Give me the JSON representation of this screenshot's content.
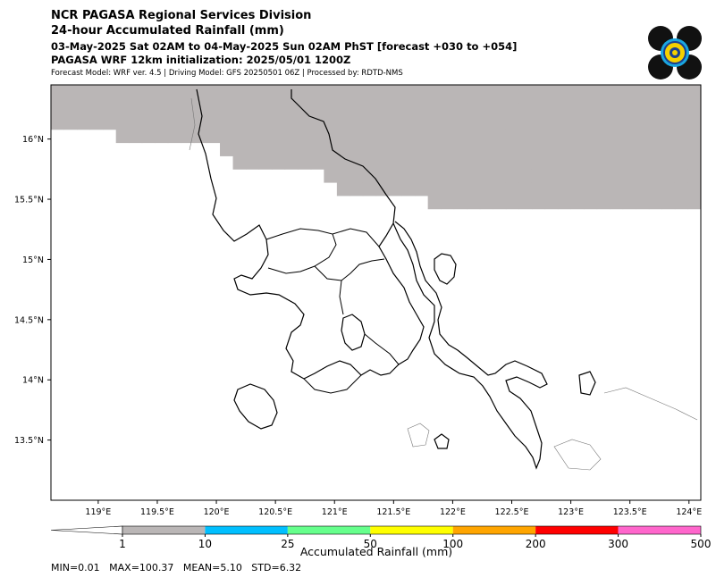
{
  "header": {
    "title": "NCR PAGASA Regional Services Division",
    "subtitle": "24-hour Accumulated Rainfall (mm)",
    "period": "03-May-2025 Sat 02AM to 04-May-2025 Sun 02AM PhST [forecast +030 to +054]",
    "init": "PAGASA WRF 12km initialization: 2025/05/01 1200Z",
    "meta": "Forecast Model: WRF ver. 4.5 | Driving Model: GFS 20250501 06Z | Processed by: RDTD-NMS"
  },
  "logo": {
    "name": "pagasa-logo"
  },
  "stats": "MIN=0.01   MAX=100.37   MEAN=5.10   STD=6.32",
  "chart_data": {
    "type": "heatmap",
    "title": "24-hour Accumulated Rainfall (mm)",
    "xlabel": "",
    "ylabel": "",
    "xlim": [
      118.6,
      124.1
    ],
    "ylim": [
      13.0,
      16.45
    ],
    "xticks": [
      119,
      119.5,
      120,
      120.5,
      121,
      121.5,
      122,
      122.5,
      123,
      123.5,
      124
    ],
    "xtick_labels": [
      "119°E",
      "119.5°E",
      "120°E",
      "120.5°E",
      "121°E",
      "121.5°E",
      "122°E",
      "122.5°E",
      "123°E",
      "123.5°E",
      "124°E"
    ],
    "yticks": [
      13.5,
      14,
      14.5,
      15,
      15.5,
      16
    ],
    "ytick_labels": [
      "13.5°N",
      "14°N",
      "14.5°N",
      "15°N",
      "15.5°N",
      "16°N"
    ],
    "colorbar": {
      "label": "Accumulated Rainfall (mm)",
      "levels": [
        1,
        10,
        25,
        50,
        100,
        200,
        300,
        500
      ],
      "level_labels": [
        "1",
        "10",
        "25",
        "50",
        "100",
        "200",
        "300",
        "500"
      ],
      "colors": [
        "#bab6b6",
        "#00bfff",
        "#66ff8c",
        "#ffff00",
        "#ffa500",
        "#ff0000",
        "#ff66cc",
        "#8800aa"
      ]
    },
    "cell_size_deg": 0.11,
    "class_legend": {
      "0": "<1 mm",
      "1": "1-10 mm",
      "2": "10-25 mm",
      "3": "25-50 mm",
      "4": "50-100 mm",
      "5": "100-200 mm"
    },
    "grid": [
      "111111111111111111111111111111111111111111111111111111111111111111111",
      "111111111111111111111111111111111111111111111111111111111111111111111",
      "111111111111111111111111111111111111111111111111111111111111111111111",
      "111111111111111111111111111111111111111111111111111111111111111111111",
      "000001111111111111111111111111111111111111111111111111111111111111111",
      "000000000000011111111111111111111111111111111111111111111111111111111",
      "000000000000001111111111111111111111111111111111111111111111111111111",
      "000000000000000000000111111111111111111111111111111111111111111111111",
      "000000000000000000000011111111111111111111111111111111111111111111111",
      "000000000000000000000000000001111111111111111111111111111111111111111",
      "000000000000000000000000000000000000000000000000000000000000000000000",
      "000000000000000000000000000000000000000000000000000000000000000000000",
      "000000000000000000000000000000000000000000000000000000000000000000000",
      "000000000000000000000000000000000000000000000000000000000000000000000",
      "000000000000000000000000000000000000000000000000000000000000000000000",
      "000000000000000000000000000000000000000000000000000000000000000000000",
      "000000000000000000000000000000000000000000000000000000000000000000000",
      "000000000000000000000000000000000000000000000000000000000000000000000",
      "000000000000000000000000000000000000000000000000000000000000000000000",
      "000000000000000000000000000000000000000000000000000000000000000000000",
      "000000000000000000000000000000000000000000000000000000000000000000000",
      "000000000000000000000000000000000000000000000000000000000000000000000",
      "000000000000000000000000000000000000000000000000000000000000000000000",
      "000000000000000000000000000000000000000000000000000000000000000000000",
      "000000000000000000000000000000000000000000000000000000000000000000000",
      "000000000000000000000000000000000000000000000000000000000000000000000",
      "000000000000000000000000000000000000000000000000000000000000000000000",
      "000000000000000000000000000000000000000000000000000000000000000000000",
      "000000000000000000000000000000000000000000000000000000000000000000000",
      "000000000000000000000000000000000000000000000000000000000000000000000",
      "000000000000000000000000000000000000000000000000000000000000000000000",
      "000000000000000000000000000000000000000000000000000000000000000000000"
    ]
  }
}
